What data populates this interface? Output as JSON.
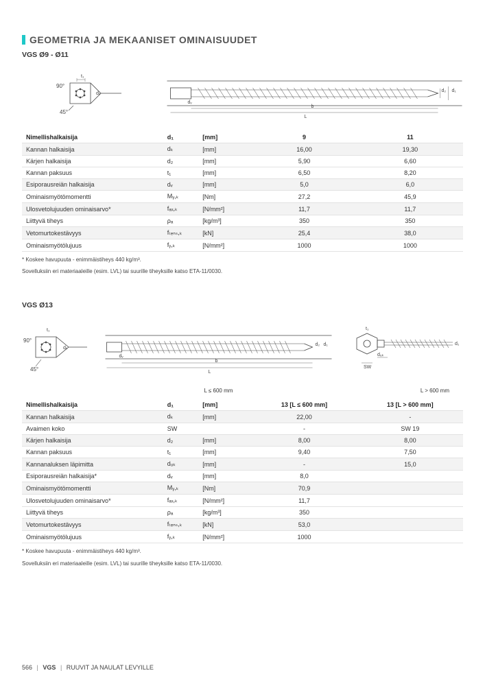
{
  "page_title": "GEOMETRIA JA MEKAANISET OMINAISUUDET",
  "sub1": "VGS Ø9 - Ø11",
  "sub2": "VGS Ø13",
  "head_labels": {
    "angle_top": "90°",
    "t1": "t₁",
    "dk": "dₖ",
    "angle_bottom": "45°",
    "dv": "dᵥ",
    "b": "b",
    "L": "L",
    "d2": "d₂",
    "d1": "d₁",
    "duk": "dᵤₖ",
    "SW": "SW"
  },
  "table1": {
    "param_header": "Nimellishalkaisija",
    "sym_header": "d₁",
    "unit_header": "[mm]",
    "col1": "9",
    "col2": "11",
    "rows": [
      {
        "shade": true,
        "param": "Kannan halkaisija",
        "sym": "dₖ",
        "unit": "[mm]",
        "v1": "16,00",
        "v2": "19,30"
      },
      {
        "shade": false,
        "param": "Kärjen halkaisija",
        "sym": "d₂",
        "unit": "[mm]",
        "v1": "5,90",
        "v2": "6,60"
      },
      {
        "shade": false,
        "param": "Kannan paksuus",
        "sym": "t₁",
        "unit": "[mm]",
        "v1": "6,50",
        "v2": "8,20"
      },
      {
        "shade": true,
        "param": "Esiporausreiän halkaisija",
        "sym": "dᵥ",
        "unit": "[mm]",
        "v1": "5,0",
        "v2": "6,0"
      },
      {
        "shade": false,
        "param": "Ominaismyötömomentti",
        "sym": "Mᵧ,ₖ",
        "unit": "[Nm]",
        "v1": "27,2",
        "v2": "45,9"
      },
      {
        "shade": true,
        "param": "Ulosvetolujuuden ominaisarvo*",
        "sym": "fₐₓ,ₖ",
        "unit": "[N/mm²]",
        "v1": "11,7",
        "v2": "11,7"
      },
      {
        "shade": false,
        "param": "Liittyvä tiheys",
        "sym": "ρₐ",
        "unit": "[kg/m³]",
        "v1": "350",
        "v2": "350"
      },
      {
        "shade": true,
        "param": "Vetomurtokestävyys",
        "sym": "fₜₑₙₛ,ₖ",
        "unit": "[kN]",
        "v1": "25,4",
        "v2": "38,0"
      },
      {
        "shade": false,
        "param": "Ominaismyötölujuus",
        "sym": "fᵧ,ₖ",
        "unit": "[N/mm²]",
        "v1": "1000",
        "v2": "1000"
      }
    ]
  },
  "footnote1a": "*  Koskee havupuuta - enimmäistiheys 440 kg/m³.",
  "footnote1b": "Sovelluksiin eri materiaaleille (esim. LVL) tai suurille tiheyksille katso ETA-11/0030.",
  "caption_left": "L ≤ 600 mm",
  "caption_right": "L > 600 mm",
  "table2": {
    "param_header": "Nimellishalkaisija",
    "sym_header": "d₁",
    "unit_header": "[mm]",
    "col1": "13 [L ≤ 600 mm]",
    "col2": "13 [L > 600 mm]",
    "rows": [
      {
        "shade": true,
        "param": "Kannan halkaisija",
        "sym": "dₖ",
        "unit": "[mm]",
        "v1": "22,00",
        "v2": "-"
      },
      {
        "shade": false,
        "param": "Avaimen koko",
        "sym": "SW",
        "unit": "",
        "v1": "-",
        "v2": "SW 19"
      },
      {
        "shade": true,
        "param": "Kärjen halkaisija",
        "sym": "d₂",
        "unit": "[mm]",
        "v1": "8,00",
        "v2": "8,00"
      },
      {
        "shade": false,
        "param": "Kannan paksuus",
        "sym": "t₁",
        "unit": "[mm]",
        "v1": "9,40",
        "v2": "7,50"
      },
      {
        "shade": true,
        "param": "Kannanaluksen läpimitta",
        "sym": "dᵤₖ",
        "unit": "[mm]",
        "v1": "-",
        "v2": "15,0"
      },
      {
        "shade": false,
        "param": "Esiporausreiän halkaisija*",
        "sym": "dᵥ",
        "unit": "[mm]",
        "v1": "8,0",
        "v2": ""
      },
      {
        "shade": true,
        "param": "Ominaismyötömomentti",
        "sym": "Mᵧ,ₖ",
        "unit": "[Nm]",
        "v1": "70,9",
        "v2": ""
      },
      {
        "shade": false,
        "param": "Ulosvetolujuuden ominaisarvo*",
        "sym": "fₐₓ,ₖ",
        "unit": "[N/mm²]",
        "v1": "11,7",
        "v2": ""
      },
      {
        "shade": false,
        "param": "Liittyvä tiheys",
        "sym": "ρₐ",
        "unit": "[kg/m³]",
        "v1": "350",
        "v2": ""
      },
      {
        "shade": true,
        "param": "Vetomurtokestävyys",
        "sym": "fₜₑₙₛ,ₖ",
        "unit": "[kN]",
        "v1": "53,0",
        "v2": ""
      },
      {
        "shade": false,
        "param": "Ominaismyötölujuus",
        "sym": "fᵧ,ₖ",
        "unit": "[N/mm²]",
        "v1": "1000",
        "v2": ""
      }
    ]
  },
  "footer": {
    "page": "566",
    "code": "VGS",
    "section": "RUUVIT JA NAULAT LEVYILLE"
  }
}
